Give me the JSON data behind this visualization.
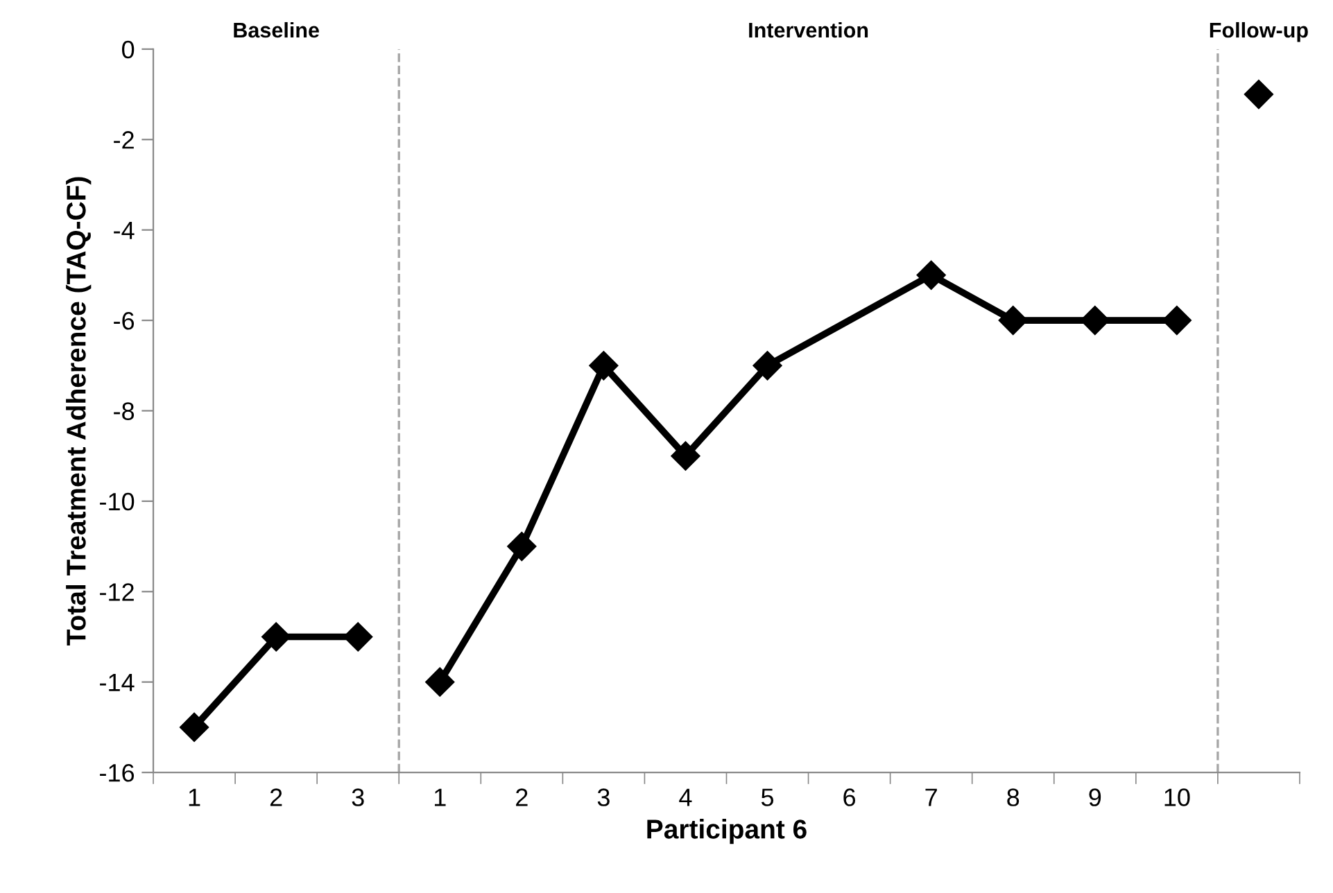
{
  "chart_data": {
    "type": "line",
    "xlabel": "Participant 6",
    "ylabel": "Total Treatment Adherence (TAQ-CF)",
    "categories": [
      "1",
      "2",
      "3",
      "1",
      "2",
      "3",
      "4",
      "5",
      "6",
      "7",
      "8",
      "9",
      "10",
      null
    ],
    "series": [
      {
        "color": "#000000",
        "values": [
          -15,
          -13,
          -13,
          null,
          null,
          null,
          null,
          null,
          null,
          null,
          null,
          null,
          null,
          null
        ]
      },
      {
        "color": "#000000",
        "values": [
          null,
          null,
          null,
          -14,
          -11,
          -7,
          -9,
          -7,
          null,
          -5,
          -6,
          -6,
          -6,
          null
        ]
      },
      {
        "color": "#000000",
        "values": [
          null,
          null,
          null,
          null,
          null,
          null,
          null,
          null,
          null,
          null,
          null,
          null,
          null,
          -1
        ]
      }
    ],
    "ylim": [
      -16,
      0
    ],
    "yticks": [
      -16,
      -14,
      -12,
      -10,
      -8,
      -6,
      -4,
      -2,
      0
    ],
    "annotations": [
      "Baseline",
      "Intervention",
      "Follow-up"
    ],
    "marker": "diamond",
    "line_style": "solid",
    "grid": false,
    "legend": false
  }
}
